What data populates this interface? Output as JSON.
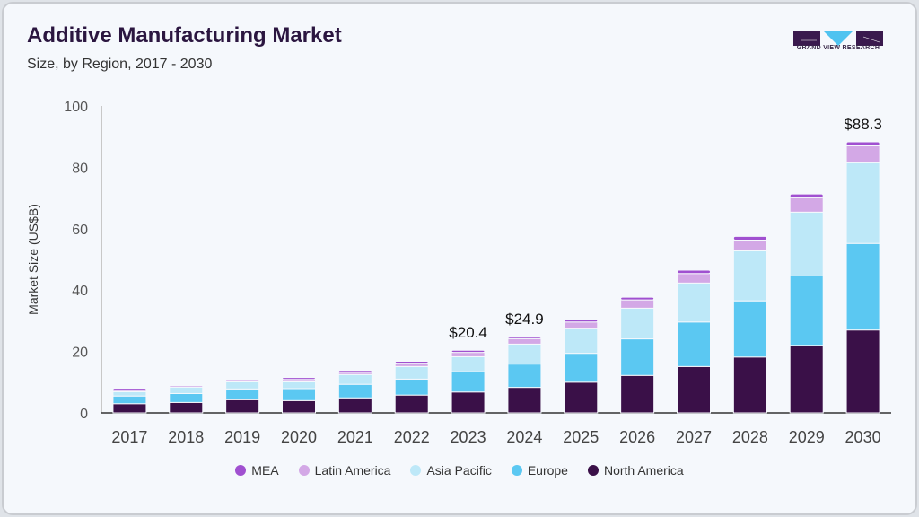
{
  "header": {
    "title": "Additive Manufacturing Market",
    "subtitle": "Size, by Region, 2017 - 2030",
    "logo_text": "GRAND VIEW RESEARCH"
  },
  "chart_data": {
    "type": "bar",
    "stacked": true,
    "title": "Additive Manufacturing Market",
    "subtitle": "Size, by Region, 2017 - 2030",
    "xlabel": "",
    "ylabel": "Market Size (US$B)",
    "ylim": [
      0,
      100
    ],
    "yticks": [
      0,
      20,
      40,
      60,
      80,
      100
    ],
    "grid": false,
    "legend_position": "bottom",
    "categories": [
      "2017",
      "2018",
      "2019",
      "2020",
      "2021",
      "2022",
      "2023",
      "2024",
      "2025",
      "2026",
      "2027",
      "2028",
      "2029",
      "2030"
    ],
    "series": [
      {
        "name": "North America",
        "color": "#3a1048",
        "values": [
          3.0,
          3.4,
          4.3,
          4.0,
          4.9,
          5.8,
          6.8,
          8.3,
          10.0,
          12.2,
          15.1,
          18.2,
          22.0,
          27.0
        ]
      },
      {
        "name": "Europe",
        "color": "#5bc8f2",
        "values": [
          2.5,
          2.9,
          3.5,
          3.9,
          4.4,
          5.2,
          6.6,
          7.6,
          9.4,
          11.9,
          14.5,
          18.3,
          22.6,
          28.2
        ]
      },
      {
        "name": "Asia Pacific",
        "color": "#bde8f8",
        "values": [
          1.4,
          2.1,
          2.3,
          2.2,
          3.2,
          4.1,
          4.9,
          6.5,
          8.2,
          10.0,
          12.7,
          16.3,
          20.8,
          26.3
        ]
      },
      {
        "name": "Latin America",
        "color": "#d3a8e6",
        "values": [
          0.5,
          0.5,
          0.8,
          0.8,
          0.7,
          1.1,
          1.4,
          1.8,
          2.0,
          2.7,
          3.1,
          3.5,
          4.7,
          5.5
        ]
      },
      {
        "name": "MEA",
        "color": "#a050d0",
        "values": [
          0.6,
          0.3,
          0.3,
          0.6,
          0.6,
          0.6,
          0.7,
          0.7,
          0.8,
          0.9,
          1.1,
          1.2,
          1.2,
          1.3
        ]
      }
    ],
    "annotations": [
      {
        "category": "2023",
        "label": "$20.4"
      },
      {
        "category": "2024",
        "label": "$24.9"
      },
      {
        "category": "2030",
        "label": "$88.3"
      }
    ]
  },
  "legend": [
    {
      "label": "MEA",
      "color": "#a050d0"
    },
    {
      "label": "Latin America",
      "color": "#d3a8e6"
    },
    {
      "label": "Asia Pacific",
      "color": "#bde8f8"
    },
    {
      "label": "Europe",
      "color": "#5bc8f2"
    },
    {
      "label": "North America",
      "color": "#3a1048"
    }
  ]
}
